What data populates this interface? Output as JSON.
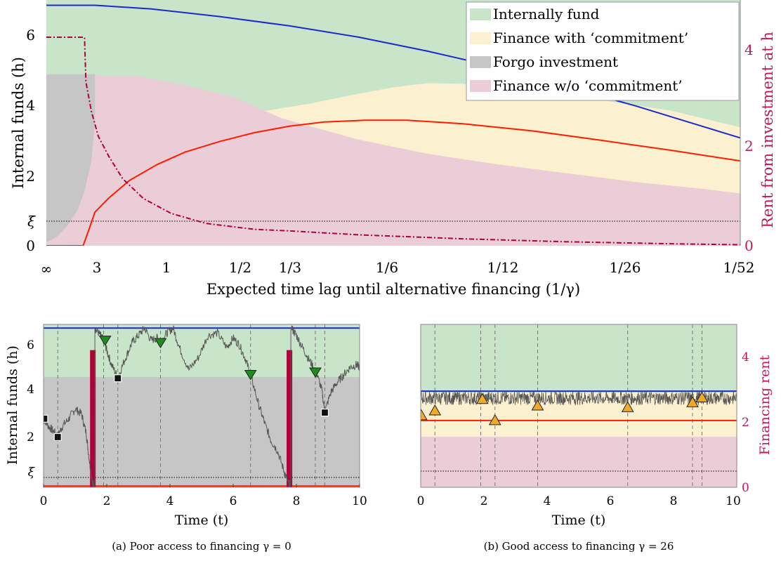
{
  "colors": {
    "internal": "#c9e5c9",
    "commit": "#fbf0cf",
    "forgo": "#c6c6c6",
    "nocommit": "#eacdd6",
    "blue": "#1a2acd",
    "red": "#ff1c00",
    "rent": "#b0003a",
    "rent_axis": "#c2185b",
    "path": "#555555",
    "green_marker": "#1e8c1e",
    "orange_marker": "#f0a929"
  },
  "top": {
    "ylabel": "Internal funds (h)",
    "y2label": "Rent from investment at h",
    "xlabel": "Expected time lag until alternative financing (1/γ)",
    "yticks": [
      0,
      2,
      4,
      6
    ],
    "yticklabels": [
      "0",
      "2",
      "4",
      "6"
    ],
    "xi_label": "ξ",
    "xi": 0.7,
    "y2ticks": [
      0,
      2,
      4
    ],
    "y2ticklabels": [
      "0",
      "2",
      "4"
    ],
    "xticklabels": [
      "∞",
      "3",
      "1",
      "1/2",
      "1/3",
      "1/6",
      "1/12",
      "1/26",
      "1/52"
    ],
    "ylim": [
      0,
      6.95
    ],
    "y2lim": [
      0,
      4.95
    ],
    "legend": [
      {
        "key": "internal",
        "label": "Internally fund"
      },
      {
        "key": "commit",
        "label": "Finance with ‘commitment’"
      },
      {
        "key": "forgo",
        "label": "Forgo investment"
      },
      {
        "key": "nocommit",
        "label": "Finance w/o ‘commitment’"
      }
    ]
  },
  "chart_data": [
    {
      "type": "area",
      "xlim": [
        0,
        1
      ],
      "ylim": [
        0,
        6.95
      ],
      "y2lim": [
        0,
        4.95
      ],
      "series": [
        {
          "name": "Internally fund",
          "kind": "region",
          "x": [
            0,
            1
          ],
          "y": [
            6.95,
            6.95
          ]
        },
        {
          "name": "Finance with ‘commitment’",
          "kind": "region",
          "x": [
            0.28,
            0.38,
            0.45,
            0.5,
            0.55,
            0.6,
            0.7,
            0.8,
            0.9,
            1.0
          ],
          "y": [
            3.7,
            4.02,
            4.3,
            4.48,
            4.6,
            4.58,
            4.38,
            4.12,
            3.82,
            3.35
          ]
        },
        {
          "name": "Finance w/o ‘commitment’",
          "kind": "region",
          "x": [
            0,
            0.07,
            0.08,
            0.13,
            0.2,
            0.27,
            0.34,
            0.45,
            0.55,
            0.65,
            0.75,
            0.85,
            0.95,
            1.0
          ],
          "y": [
            4.85,
            4.85,
            4.8,
            4.8,
            4.55,
            4.2,
            3.6,
            3.0,
            2.6,
            2.3,
            2.05,
            1.8,
            1.6,
            1.48
          ]
        },
        {
          "name": "Forgo investment",
          "kind": "region",
          "x": [
            0,
            0.015,
            0.03,
            0.045,
            0.055,
            0.065,
            0.07,
            0.07
          ],
          "y": [
            0.1,
            0.25,
            0.55,
            1.0,
            1.55,
            2.4,
            3.5,
            4.85
          ]
        },
        {
          "name": "",
          "kind": "line",
          "color_key": "blue",
          "x": [
            0,
            0.07,
            0.15,
            0.25,
            0.35,
            0.45,
            0.55,
            0.65,
            0.75,
            0.85,
            0.95,
            1.0
          ],
          "y": [
            6.8,
            6.8,
            6.7,
            6.48,
            6.22,
            5.9,
            5.5,
            5.05,
            4.5,
            3.95,
            3.35,
            3.05
          ]
        },
        {
          "name": "",
          "kind": "line",
          "color_key": "red",
          "x": [
            0,
            0.053,
            0.063,
            0.07,
            0.09,
            0.12,
            0.16,
            0.2,
            0.25,
            0.3,
            0.35,
            0.4,
            0.46,
            0.52,
            0.6,
            0.7,
            0.8,
            0.9,
            1.0
          ],
          "y": [
            0,
            0,
            0.55,
            0.95,
            1.35,
            1.85,
            2.3,
            2.65,
            2.95,
            3.2,
            3.38,
            3.5,
            3.55,
            3.55,
            3.45,
            3.25,
            2.98,
            2.7,
            2.4
          ]
        },
        {
          "name": "",
          "kind": "line",
          "axis": "right",
          "dashed": true,
          "color_key": "rent",
          "x": [
            0,
            0.055,
            0.057,
            0.065,
            0.075,
            0.09,
            0.11,
            0.14,
            0.18,
            0.23,
            0.3,
            0.35,
            0.45,
            0.6,
            0.75,
            0.9,
            1.0
          ],
          "y": [
            4.2,
            4.2,
            3.3,
            2.7,
            2.2,
            1.8,
            1.35,
            0.95,
            0.65,
            0.45,
            0.33,
            0.3,
            0.22,
            0.14,
            0.08,
            0.04,
            0.02
          ]
        }
      ]
    },
    {
      "type": "line",
      "title": "",
      "xlabel": "Time (t)",
      "ylabel": "Internal funds (h)",
      "xlim": [
        0,
        10
      ],
      "ylim": [
        0.3,
        6.95
      ],
      "xticks": [
        0,
        2,
        4,
        6,
        8,
        10
      ],
      "yticks": [
        2,
        4,
        6
      ],
      "xi": 0.7,
      "xi_label": "ξ",
      "regions": {
        "gray_top": 4.8,
        "green_top": 6.95
      },
      "upper_line": 6.8,
      "lower_line": 0.35,
      "rent_bars_x": [
        1.56,
        7.78
      ],
      "rent_bar_height": 5.9,
      "dashed_event_x": [
        0.45,
        1.9,
        2.35,
        3.7,
        6.55,
        8.6,
        8.9
      ],
      "path": {
        "x": [
          0,
          0.15,
          0.3,
          0.45,
          0.6,
          0.8,
          1.0,
          1.2,
          1.35,
          1.45,
          1.55,
          1.6,
          1.65,
          1.8,
          1.9,
          2.0,
          2.15,
          2.35,
          2.6,
          2.8,
          3.0,
          3.2,
          3.4,
          3.6,
          3.7,
          3.9,
          4.1,
          4.3,
          4.6,
          4.9,
          5.2,
          5.5,
          5.8,
          6.0,
          6.2,
          6.4,
          6.55,
          6.8,
          7.0,
          7.2,
          7.4,
          7.6,
          7.75,
          7.8,
          7.85,
          8.0,
          8.2,
          8.4,
          8.6,
          8.8,
          8.9,
          9.1,
          9.3,
          9.5,
          9.7,
          9.9,
          10.0
        ],
        "y": [
          3.1,
          2.8,
          2.6,
          2.4,
          2.8,
          3.1,
          3.5,
          3.3,
          2.5,
          1.4,
          0.45,
          0.4,
          6.75,
          6.5,
          6.3,
          5.9,
          5.3,
          4.8,
          5.6,
          6.2,
          6.5,
          6.8,
          6.3,
          6.4,
          6.2,
          6.6,
          6.8,
          6.0,
          5.1,
          5.6,
          6.5,
          6.6,
          6.0,
          6.4,
          6.1,
          5.5,
          4.9,
          3.7,
          2.9,
          2.2,
          1.8,
          1.0,
          0.45,
          0.4,
          6.8,
          6.5,
          6.0,
          5.5,
          5.1,
          4.3,
          3.4,
          4.2,
          4.6,
          4.9,
          5.2,
          5.3,
          5.2
        ]
      },
      "markers": [
        {
          "shape": "square",
          "x": 0.02,
          "y": 3.1
        },
        {
          "shape": "square",
          "x": 0.45,
          "y": 2.35
        },
        {
          "shape": "triangle-down",
          "x": 1.95,
          "y": 6.3
        },
        {
          "shape": "square",
          "x": 2.35,
          "y": 4.75
        },
        {
          "shape": "triangle-down",
          "x": 3.7,
          "y": 6.2
        },
        {
          "shape": "triangle-down",
          "x": 6.55,
          "y": 4.9
        },
        {
          "shape": "triangle-down",
          "x": 8.6,
          "y": 5.0
        },
        {
          "shape": "square",
          "x": 8.9,
          "y": 3.35
        }
      ]
    },
    {
      "type": "line",
      "title": "",
      "xlabel": "Time (t)",
      "ylabel": "Financing rent",
      "xlim": [
        0,
        10
      ],
      "ylim": [
        0,
        5
      ],
      "xticks": [
        0,
        2,
        4,
        6,
        8,
        10
      ],
      "yticks": [
        0,
        2,
        4
      ],
      "regions": {
        "nocommit_top": 1.55,
        "commit_top": 2.9
      },
      "upper_line": 2.95,
      "lower_line": 2.05,
      "dashed_event_x": [
        0.45,
        1.9,
        2.35,
        3.7,
        6.55,
        8.6,
        8.9
      ],
      "path_band": [
        2.3,
        2.95
      ],
      "markers": [
        {
          "shape": "triangle-up",
          "x": 0.02,
          "y": 2.2
        },
        {
          "shape": "triangle-up",
          "x": 0.45,
          "y": 2.35
        },
        {
          "shape": "triangle-up",
          "x": 1.95,
          "y": 2.7
        },
        {
          "shape": "triangle-up",
          "x": 2.35,
          "y": 2.05
        },
        {
          "shape": "triangle-up",
          "x": 3.7,
          "y": 2.5
        },
        {
          "shape": "triangle-up",
          "x": 6.55,
          "y": 2.45
        },
        {
          "shape": "triangle-up",
          "x": 8.6,
          "y": 2.6
        },
        {
          "shape": "triangle-up",
          "x": 8.9,
          "y": 2.75
        }
      ]
    }
  ],
  "bottom": {
    "left_ylabel": "Internal funds (h)",
    "right_ylabel": "Financing rent",
    "xlabel": "Time (t)",
    "caption_a": "(a) Poor access to financing γ = 0",
    "caption_b": "(b) Good access to financing γ = 26",
    "left_xticklabels": [
      "0",
      "2",
      "4",
      "6",
      "8",
      "10"
    ],
    "left_yticklabels": [
      "2",
      "4",
      "6"
    ],
    "right_xticklabels": [
      "0",
      "2",
      "4",
      "6",
      "8",
      "10"
    ],
    "right_yticklabels": [
      "0",
      "2",
      "4"
    ],
    "xi_label": "ξ"
  }
}
